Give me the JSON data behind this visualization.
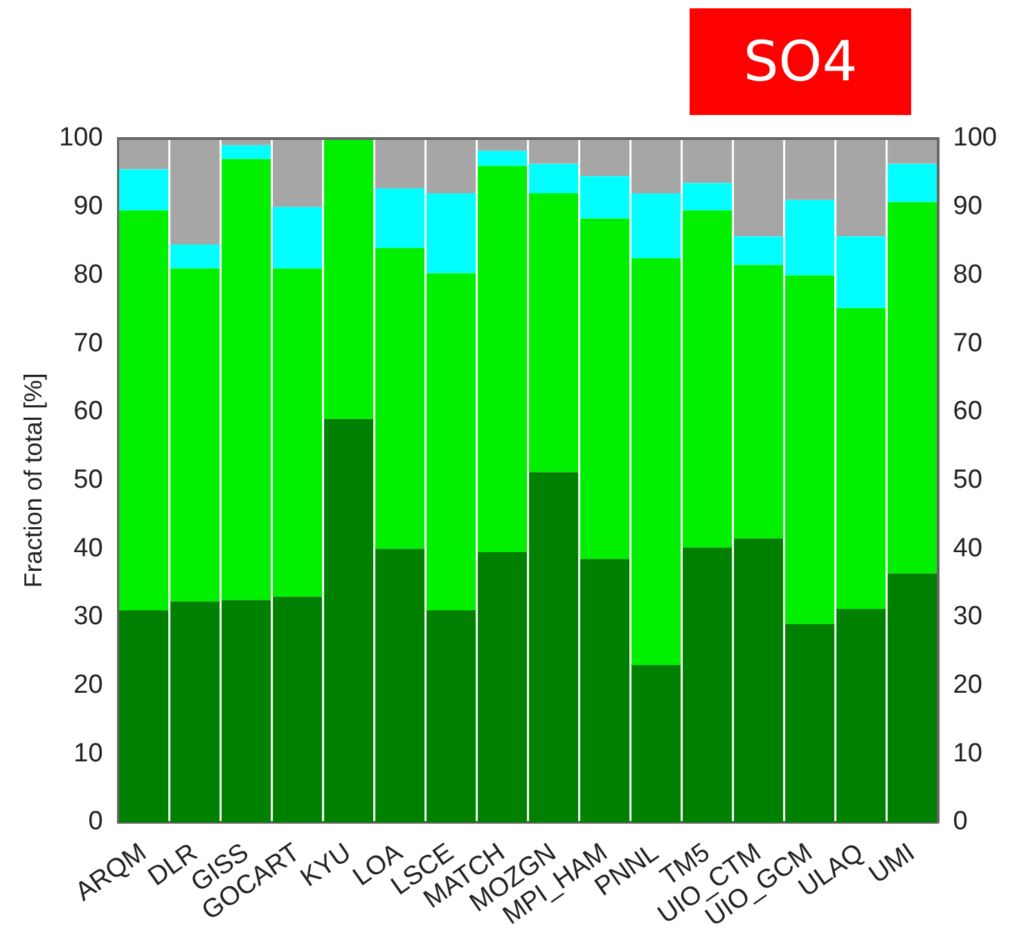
{
  "chart_data": {
    "type": "bar",
    "title": "SO4",
    "ylabel": "Fraction of total [%]",
    "stacked": true,
    "grid": false,
    "legend": false,
    "categories": [
      "ARQM",
      "DLR",
      "GISS",
      "GOCART",
      "KYU",
      "LOA",
      "LSCE",
      "MATCH",
      "MOZGN",
      "MPI_HAM",
      "PNNL",
      "TM5",
      "UIO_CTM",
      "UIO_GCM",
      "ULAQ",
      "UMI"
    ],
    "series": [
      {
        "color": "#008000",
        "values": [
          31,
          32.3,
          32.5,
          33,
          59,
          40,
          31,
          39.5,
          51.2,
          38.5,
          23,
          40.2,
          41.5,
          29,
          31.2,
          36.4
        ]
      },
      {
        "color": "#00f000",
        "values": [
          58.5,
          48.7,
          64.5,
          48,
          41,
          44,
          49.3,
          56.5,
          40.8,
          49.8,
          59.5,
          49.3,
          40,
          51,
          44,
          54.3
        ]
      },
      {
        "color": "#00ffff",
        "values": [
          6,
          3.5,
          2,
          9,
          0,
          8.7,
          11.7,
          2.2,
          4.3,
          6.2,
          9.5,
          4,
          4.2,
          11,
          10.5,
          5.6
        ]
      },
      {
        "color": "#a6a6a6",
        "values": [
          4.5,
          15.5,
          1,
          10,
          0,
          7.3,
          8,
          1.8,
          3.7,
          5.5,
          8,
          6.5,
          14.3,
          9,
          14.3,
          3.7
        ]
      }
    ],
    "ylim": [
      0,
      100
    ],
    "yticks": [
      0,
      10,
      20,
      30,
      40,
      50,
      60,
      70,
      80,
      90,
      100
    ],
    "y2lim": [
      0,
      100
    ],
    "y2ticks": [
      0,
      10,
      20,
      30,
      40,
      50,
      60,
      70,
      80,
      90,
      100
    ]
  }
}
